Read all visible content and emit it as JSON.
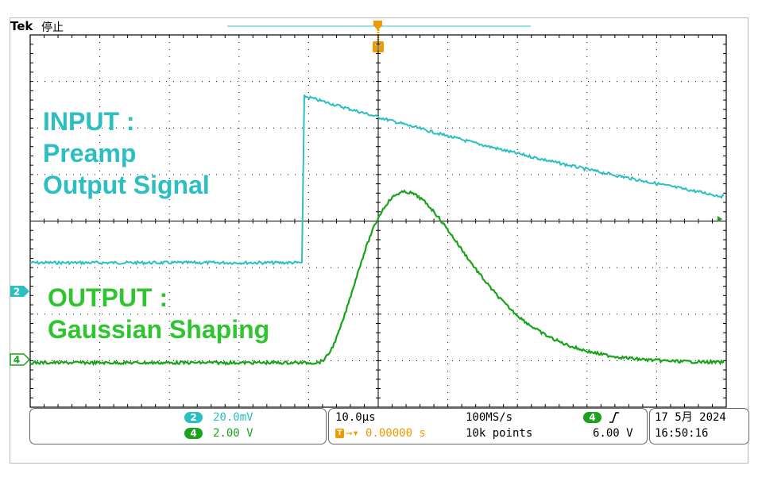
{
  "header": {
    "brand": "Tek",
    "state": "停止"
  },
  "trigger_marker": "T",
  "annotations": {
    "input": [
      "INPUT :",
      "Preamp",
      "Output Signal"
    ],
    "output": [
      "OUTPUT :",
      "Gaussian Shaping"
    ]
  },
  "channels": [
    {
      "num": "2",
      "scale": "20.0mV",
      "color": "#2bbfc2"
    },
    {
      "num": "4",
      "scale": "2.00 V",
      "color": "#1aa31a"
    }
  ],
  "horizontal": {
    "timebase": "10.0µs",
    "position": "0.00000 s",
    "position_color": "#f09a00"
  },
  "acquisition": {
    "rate": "100MS/s",
    "points": "10k points"
  },
  "trigger": {
    "source": "4",
    "slope": "rising",
    "level": "6.00 V"
  },
  "datetime": {
    "date": "17 5月  2024",
    "time": "16:50:16"
  },
  "colors": {
    "input_trace": "#2bbfc2",
    "output_trace": "#1aa31a",
    "trigger_marker": "#f09a00",
    "graticule": "#000000"
  }
}
